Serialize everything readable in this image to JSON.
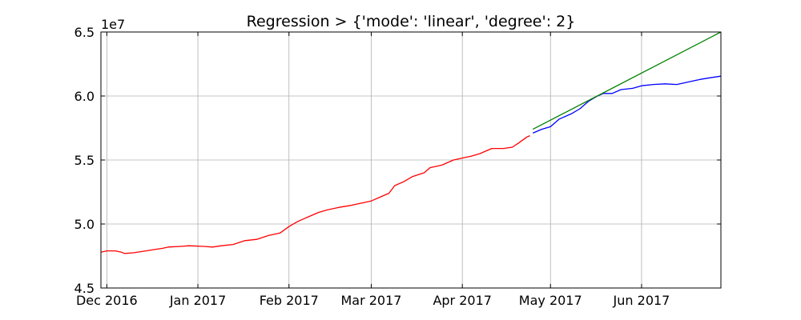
{
  "chart_data": {
    "type": "line",
    "title": "Regression > {'mode': 'linear', 'degree': 2}",
    "xlabel": "",
    "ylabel": "",
    "y_multiplier_label": "1e7",
    "xlim": [
      "2016-11-29",
      "2017-06-28"
    ],
    "ylim": [
      4.5,
      6.5
    ],
    "y_scale_note": "values in units of 1e7",
    "grid": true,
    "legend": "none",
    "x_ticks": [
      {
        "date": "2016-12-01",
        "label": "Dec 2016"
      },
      {
        "date": "2017-01-01",
        "label": "Jan 2017"
      },
      {
        "date": "2017-02-01",
        "label": "Feb 2017"
      },
      {
        "date": "2017-03-01",
        "label": "Mar 2017"
      },
      {
        "date": "2017-04-01",
        "label": "Apr 2017"
      },
      {
        "date": "2017-05-01",
        "label": "May 2017"
      },
      {
        "date": "2017-06-01",
        "label": "Jun 2017"
      }
    ],
    "y_ticks": [
      {
        "value": 4.5,
        "label": "4.5"
      },
      {
        "value": 5.0,
        "label": "5.0"
      },
      {
        "value": 5.5,
        "label": "5.5"
      },
      {
        "value": 6.0,
        "label": "6.0"
      },
      {
        "value": 6.5,
        "label": "6.5"
      }
    ],
    "series": [
      {
        "color": "#ff0000",
        "points": [
          [
            "2016-11-29",
            4.78
          ],
          [
            "2016-12-01",
            4.79
          ],
          [
            "2016-12-04",
            4.79
          ],
          [
            "2016-12-06",
            4.78
          ],
          [
            "2016-12-07",
            4.77
          ],
          [
            "2016-12-10",
            4.775
          ],
          [
            "2016-12-13",
            4.785
          ],
          [
            "2016-12-17",
            4.8
          ],
          [
            "2016-12-20",
            4.81
          ],
          [
            "2016-12-22",
            4.82
          ],
          [
            "2016-12-26",
            4.825
          ],
          [
            "2016-12-29",
            4.83
          ],
          [
            "2017-01-03",
            4.825
          ],
          [
            "2017-01-06",
            4.82
          ],
          [
            "2017-01-09",
            4.83
          ],
          [
            "2017-01-13",
            4.84
          ],
          [
            "2017-01-17",
            4.87
          ],
          [
            "2017-01-21",
            4.88
          ],
          [
            "2017-01-25",
            4.91
          ],
          [
            "2017-01-29",
            4.93
          ],
          [
            "2017-02-01",
            4.98
          ],
          [
            "2017-02-04",
            5.02
          ],
          [
            "2017-02-07",
            5.05
          ],
          [
            "2017-02-11",
            5.09
          ],
          [
            "2017-02-14",
            5.11
          ],
          [
            "2017-02-18",
            5.13
          ],
          [
            "2017-02-22",
            5.145
          ],
          [
            "2017-02-26",
            5.165
          ],
          [
            "2017-03-01",
            5.18
          ],
          [
            "2017-03-04",
            5.21
          ],
          [
            "2017-03-07",
            5.24
          ],
          [
            "2017-03-09",
            5.3
          ],
          [
            "2017-03-12",
            5.33
          ],
          [
            "2017-03-15",
            5.37
          ],
          [
            "2017-03-19",
            5.4
          ],
          [
            "2017-03-21",
            5.44
          ],
          [
            "2017-03-25",
            5.46
          ],
          [
            "2017-03-29",
            5.5
          ],
          [
            "2017-04-02",
            5.52
          ],
          [
            "2017-04-04",
            5.53
          ],
          [
            "2017-04-07",
            5.55
          ],
          [
            "2017-04-11",
            5.59
          ],
          [
            "2017-04-15",
            5.59
          ],
          [
            "2017-04-18",
            5.6
          ],
          [
            "2017-04-20",
            5.63
          ],
          [
            "2017-04-23",
            5.68
          ],
          [
            "2017-04-24",
            5.69
          ]
        ]
      },
      {
        "color": "#0000ff",
        "points": [
          [
            "2017-04-25",
            5.71
          ],
          [
            "2017-04-28",
            5.74
          ],
          [
            "2017-05-01",
            5.76
          ],
          [
            "2017-05-04",
            5.82
          ],
          [
            "2017-05-08",
            5.86
          ],
          [
            "2017-05-11",
            5.9
          ],
          [
            "2017-05-14",
            5.96
          ],
          [
            "2017-05-17",
            6.0
          ],
          [
            "2017-05-19",
            6.02
          ],
          [
            "2017-05-22",
            6.02
          ],
          [
            "2017-05-25",
            6.05
          ],
          [
            "2017-05-29",
            6.06
          ],
          [
            "2017-06-01",
            6.08
          ],
          [
            "2017-06-05",
            6.09
          ],
          [
            "2017-06-09",
            6.095
          ],
          [
            "2017-06-13",
            6.09
          ],
          [
            "2017-06-17",
            6.11
          ],
          [
            "2017-06-21",
            6.13
          ],
          [
            "2017-06-25",
            6.145
          ],
          [
            "2017-06-28",
            6.155
          ]
        ]
      },
      {
        "color": "#008000",
        "points": [
          [
            "2017-04-25",
            5.74
          ],
          [
            "2017-06-28",
            6.5
          ]
        ]
      }
    ]
  }
}
